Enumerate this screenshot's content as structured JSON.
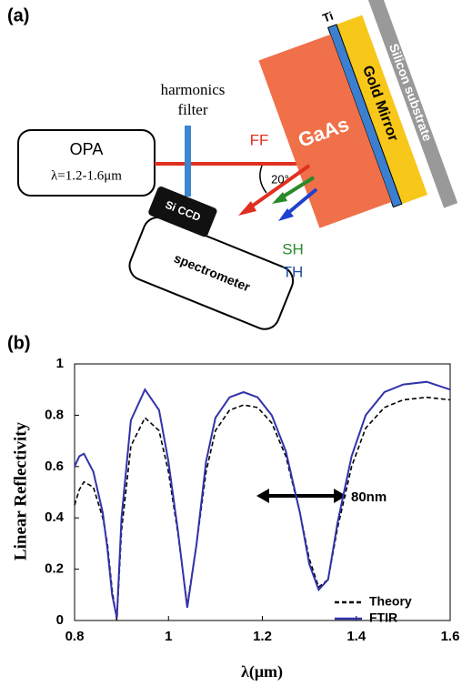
{
  "panel_a": {
    "label": "(a)",
    "filter_label": [
      "harmonics",
      "filter"
    ],
    "source": {
      "name": "OPA",
      "range": "λ=1.2-1.6μm"
    },
    "beam": "FF",
    "angle": "20°",
    "layers": {
      "gaas": "GaAs",
      "ti": "Ti",
      "gold": "Gold Mirror",
      "substrate": "Silicon substrate"
    },
    "detector": {
      "ccd": "Si CCD",
      "name": "spectrometer"
    },
    "harmonics": {
      "sh": "SH",
      "th": "TH"
    }
  },
  "chart_data": {
    "type": "line",
    "panel_label": "(b)",
    "x_label": "λ(μm)",
    "y_label": "Linear Reflectivity",
    "annotation": "80nm",
    "x": [
      0.8,
      0.81,
      0.82,
      0.84,
      0.86,
      0.87,
      0.88,
      0.89,
      0.9,
      0.92,
      0.95,
      0.98,
      1.0,
      1.02,
      1.04,
      1.06,
      1.08,
      1.1,
      1.13,
      1.16,
      1.19,
      1.22,
      1.25,
      1.28,
      1.3,
      1.32,
      1.34,
      1.36,
      1.39,
      1.42,
      1.46,
      1.5,
      1.55,
      1.6
    ],
    "series": [
      {
        "name": "Theory",
        "color": "#000000",
        "dash": true,
        "values": [
          0.45,
          0.51,
          0.54,
          0.52,
          0.4,
          0.3,
          0.12,
          0.0,
          0.35,
          0.68,
          0.79,
          0.74,
          0.58,
          0.34,
          0.06,
          0.3,
          0.58,
          0.74,
          0.82,
          0.84,
          0.83,
          0.77,
          0.64,
          0.42,
          0.24,
          0.13,
          0.16,
          0.36,
          0.6,
          0.75,
          0.83,
          0.86,
          0.87,
          0.86
        ]
      },
      {
        "name": "FTIR",
        "color": "#3333aa",
        "dash": false,
        "values": [
          0.6,
          0.64,
          0.65,
          0.58,
          0.42,
          0.28,
          0.1,
          0.01,
          0.4,
          0.78,
          0.9,
          0.82,
          0.62,
          0.35,
          0.05,
          0.3,
          0.62,
          0.79,
          0.87,
          0.89,
          0.87,
          0.8,
          0.66,
          0.42,
          0.22,
          0.12,
          0.16,
          0.38,
          0.64,
          0.8,
          0.89,
          0.92,
          0.93,
          0.9
        ]
      }
    ],
    "xlim": [
      0.8,
      1.6
    ],
    "ylim": [
      0,
      1
    ],
    "xticks": [
      0.8,
      1,
      1.2,
      1.4,
      1.6
    ],
    "yticks": [
      0,
      0.2,
      0.4,
      0.6,
      0.8,
      1
    ],
    "legend": "lower right"
  }
}
